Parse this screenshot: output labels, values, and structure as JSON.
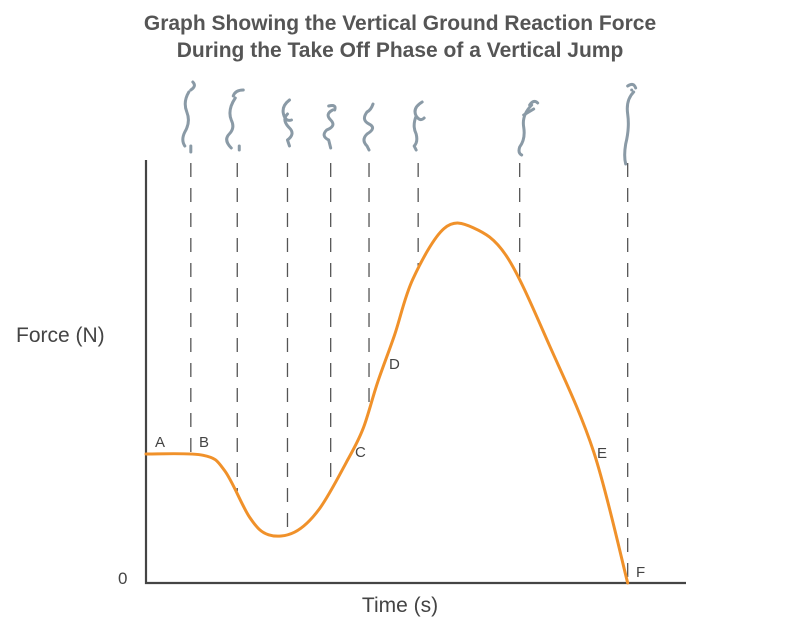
{
  "chart_data": {
    "type": "line",
    "title_lines": [
      "Graph Showing the Vertical Ground Reaction Force",
      "During the Take Off Phase of a Vertical Jump"
    ],
    "xlabel": "Time (s)",
    "ylabel": "Force (N)",
    "y_tick_labels": [
      "0"
    ],
    "xlim": [
      0,
      1
    ],
    "ylim": [
      0,
      1
    ],
    "grid": false,
    "legend": "none",
    "series": [
      {
        "color": "#f0912a",
        "points": [
          [
            0.0,
            0.305
          ],
          [
            0.106,
            0.302
          ],
          [
            0.146,
            0.265
          ],
          [
            0.192,
            0.155
          ],
          [
            0.227,
            0.114
          ],
          [
            0.275,
            0.12
          ],
          [
            0.321,
            0.175
          ],
          [
            0.371,
            0.285
          ],
          [
            0.402,
            0.365
          ],
          [
            0.429,
            0.475
          ],
          [
            0.46,
            0.585
          ],
          [
            0.494,
            0.718
          ],
          [
            0.552,
            0.838
          ],
          [
            0.606,
            0.84
          ],
          [
            0.669,
            0.77
          ],
          [
            0.747,
            0.562
          ],
          [
            0.829,
            0.31
          ],
          [
            0.892,
            0.0
          ]
        ]
      }
    ],
    "phase_markers": [
      {
        "x": 0.083,
        "label": "A"
      },
      {
        "x": 0.169,
        "label": "B"
      },
      {
        "x": 0.262,
        "label": "C"
      },
      {
        "x": 0.342,
        "label": "D"
      },
      {
        "x": 0.413,
        "label": ""
      },
      {
        "x": 0.504,
        "label": ""
      },
      {
        "x": 0.692,
        "label": "E"
      },
      {
        "x": 0.892,
        "label": "F"
      }
    ],
    "point_labels": [
      "A",
      "B",
      "C",
      "D",
      "E",
      "F"
    ],
    "figure_icons": [
      "crouch-start-figure-icon",
      "arm-swing-figure-icon",
      "deep-crouch-figure-icon",
      "push-start-figure-icon",
      "extension-figure-icon",
      "arm-raise-figure-icon",
      "near-takeoff-figure-icon",
      "takeoff-figure-icon"
    ]
  }
}
